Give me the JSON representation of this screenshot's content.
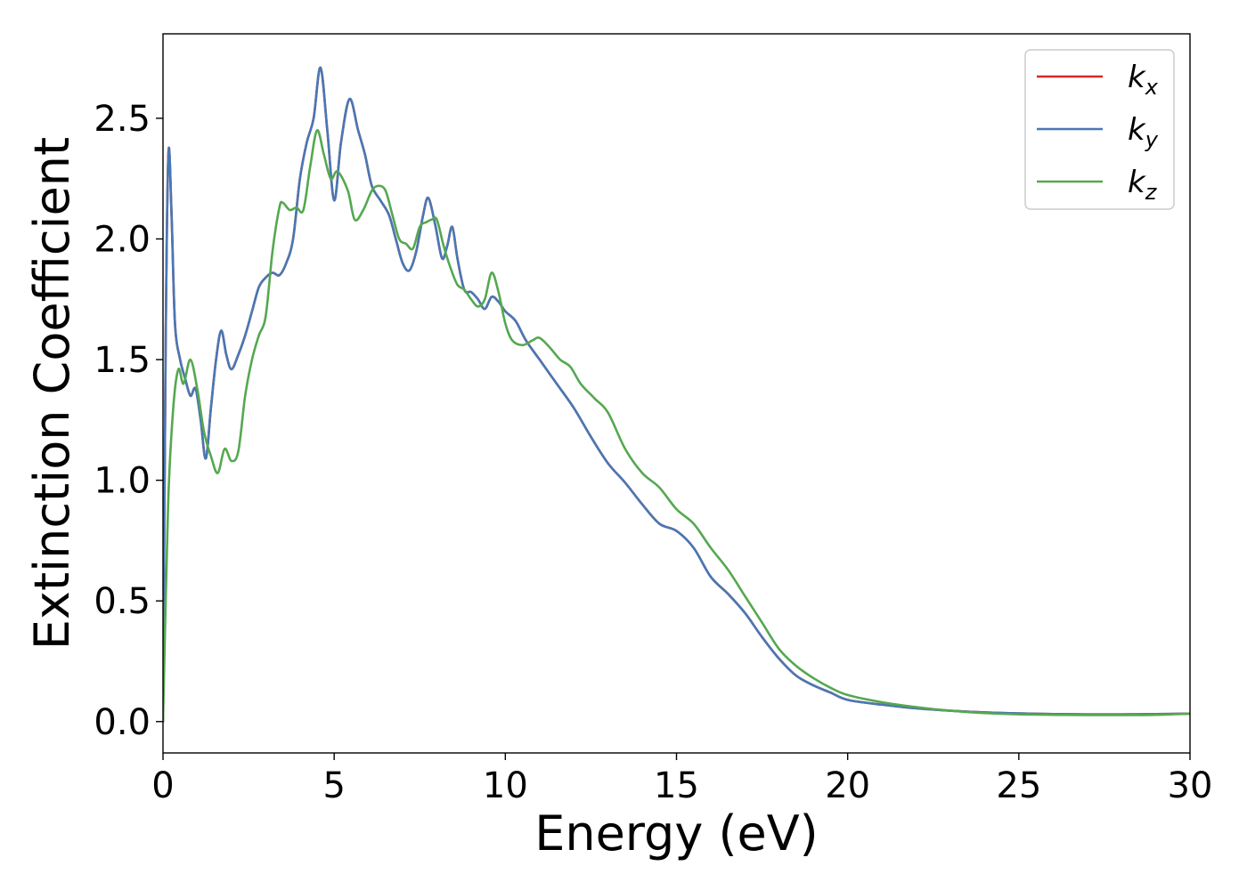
{
  "chart_data": {
    "type": "line",
    "title": "",
    "xlabel": "Energy (eV)",
    "ylabel": "Extinction Coefficient",
    "xlim": [
      0,
      30
    ],
    "ylim": [
      -0.13,
      2.85
    ],
    "xticks": [
      "0",
      "5",
      "10",
      "15",
      "20",
      "25",
      "30"
    ],
    "yticks": [
      "0.0",
      "0.5",
      "1.0",
      "1.5",
      "2.0",
      "2.5"
    ],
    "grid": false,
    "legend_position": "top-right",
    "series": [
      {
        "name": "k_x",
        "label_base": "k",
        "label_sub": "x",
        "color": "#d62728",
        "x": [
          0,
          0.08,
          0.16,
          0.25,
          0.35,
          0.5,
          0.65,
          0.8,
          0.95,
          1.1,
          1.25,
          1.4,
          1.55,
          1.7,
          1.85,
          2.0,
          2.2,
          2.4,
          2.6,
          2.8,
          3.0,
          3.2,
          3.4,
          3.6,
          3.8,
          4.0,
          4.2,
          4.4,
          4.6,
          4.8,
          5.0,
          5.2,
          5.45,
          5.7,
          5.9,
          6.1,
          6.35,
          6.6,
          6.8,
          7.0,
          7.2,
          7.4,
          7.6,
          7.75,
          7.95,
          8.15,
          8.3,
          8.45,
          8.6,
          8.8,
          9.0,
          9.2,
          9.4,
          9.6,
          9.8,
          10.0,
          10.3,
          10.6,
          11.0,
          11.5,
          12.0,
          12.5,
          13.0,
          13.5,
          14.0,
          14.5,
          15.0,
          15.5,
          16.0,
          16.5,
          17.0,
          17.5,
          18.0,
          18.5,
          19.0,
          19.5,
          20.0,
          21.0,
          22.0,
          23.0,
          24.0,
          25.0,
          26.0,
          27.0,
          28.0,
          29.0,
          30.0
        ],
        "y": [
          0.0,
          1.6,
          2.36,
          2.1,
          1.65,
          1.5,
          1.42,
          1.35,
          1.38,
          1.25,
          1.09,
          1.3,
          1.5,
          1.62,
          1.52,
          1.46,
          1.52,
          1.6,
          1.7,
          1.8,
          1.84,
          1.86,
          1.85,
          1.9,
          2.0,
          2.25,
          2.4,
          2.5,
          2.71,
          2.45,
          2.16,
          2.4,
          2.58,
          2.45,
          2.35,
          2.22,
          2.16,
          2.1,
          2.0,
          1.9,
          1.87,
          1.95,
          2.1,
          2.17,
          2.06,
          1.92,
          1.97,
          2.05,
          1.92,
          1.79,
          1.78,
          1.75,
          1.71,
          1.76,
          1.74,
          1.7,
          1.66,
          1.58,
          1.5,
          1.4,
          1.3,
          1.18,
          1.07,
          0.99,
          0.9,
          0.82,
          0.79,
          0.72,
          0.6,
          0.53,
          0.45,
          0.35,
          0.26,
          0.19,
          0.15,
          0.12,
          0.09,
          0.07,
          0.055,
          0.045,
          0.038,
          0.034,
          0.031,
          0.03,
          0.03,
          0.031,
          0.033
        ]
      },
      {
        "name": "k_y",
        "label_base": "k",
        "label_sub": "y",
        "color": "#4878b4",
        "x": [
          0,
          0.08,
          0.16,
          0.25,
          0.35,
          0.5,
          0.65,
          0.8,
          0.95,
          1.1,
          1.25,
          1.4,
          1.55,
          1.7,
          1.85,
          2.0,
          2.2,
          2.4,
          2.6,
          2.8,
          3.0,
          3.2,
          3.4,
          3.6,
          3.8,
          4.0,
          4.2,
          4.4,
          4.6,
          4.8,
          5.0,
          5.2,
          5.45,
          5.7,
          5.9,
          6.1,
          6.35,
          6.6,
          6.8,
          7.0,
          7.2,
          7.4,
          7.6,
          7.75,
          7.95,
          8.15,
          8.3,
          8.45,
          8.6,
          8.8,
          9.0,
          9.2,
          9.4,
          9.6,
          9.8,
          10.0,
          10.3,
          10.6,
          11.0,
          11.5,
          12.0,
          12.5,
          13.0,
          13.5,
          14.0,
          14.5,
          15.0,
          15.5,
          16.0,
          16.5,
          17.0,
          17.5,
          18.0,
          18.5,
          19.0,
          19.5,
          20.0,
          21.0,
          22.0,
          23.0,
          24.0,
          25.0,
          26.0,
          27.0,
          28.0,
          29.0,
          30.0
        ],
        "y": [
          0.0,
          1.6,
          2.36,
          2.1,
          1.65,
          1.5,
          1.42,
          1.35,
          1.38,
          1.25,
          1.09,
          1.3,
          1.5,
          1.62,
          1.52,
          1.46,
          1.52,
          1.6,
          1.7,
          1.8,
          1.84,
          1.86,
          1.85,
          1.9,
          2.0,
          2.25,
          2.4,
          2.5,
          2.71,
          2.45,
          2.16,
          2.4,
          2.58,
          2.45,
          2.35,
          2.22,
          2.16,
          2.1,
          2.0,
          1.9,
          1.87,
          1.95,
          2.1,
          2.17,
          2.06,
          1.92,
          1.97,
          2.05,
          1.92,
          1.79,
          1.78,
          1.75,
          1.71,
          1.76,
          1.74,
          1.7,
          1.66,
          1.58,
          1.5,
          1.4,
          1.3,
          1.18,
          1.07,
          0.99,
          0.9,
          0.82,
          0.79,
          0.72,
          0.6,
          0.53,
          0.45,
          0.35,
          0.26,
          0.19,
          0.15,
          0.12,
          0.09,
          0.07,
          0.055,
          0.045,
          0.038,
          0.034,
          0.031,
          0.03,
          0.03,
          0.031,
          0.033
        ]
      },
      {
        "name": "k_z",
        "label_base": "k",
        "label_sub": "z",
        "color": "#55a850",
        "x": [
          0,
          0.15,
          0.3,
          0.45,
          0.6,
          0.8,
          1.0,
          1.2,
          1.4,
          1.6,
          1.8,
          2.0,
          2.2,
          2.4,
          2.6,
          2.8,
          3.0,
          3.2,
          3.4,
          3.5,
          3.7,
          3.9,
          4.1,
          4.3,
          4.5,
          4.7,
          4.9,
          5.1,
          5.4,
          5.6,
          5.85,
          6.1,
          6.3,
          6.5,
          6.7,
          6.9,
          7.1,
          7.3,
          7.5,
          7.7,
          7.85,
          8.0,
          8.2,
          8.4,
          8.6,
          8.8,
          9.0,
          9.2,
          9.4,
          9.6,
          9.8,
          10.0,
          10.2,
          10.5,
          10.8,
          11.0,
          11.3,
          11.6,
          11.9,
          12.2,
          12.6,
          13.0,
          13.5,
          14.0,
          14.5,
          15.0,
          15.5,
          16.0,
          16.5,
          17.0,
          17.5,
          18.0,
          18.5,
          19.0,
          19.5,
          20.0,
          21.0,
          22.0,
          23.0,
          24.0,
          25.0,
          26.0,
          27.0,
          28.0,
          29.0,
          30.0
        ],
        "y": [
          0.0,
          0.9,
          1.3,
          1.46,
          1.4,
          1.5,
          1.38,
          1.2,
          1.1,
          1.03,
          1.13,
          1.08,
          1.12,
          1.35,
          1.5,
          1.6,
          1.68,
          1.95,
          2.13,
          2.15,
          2.12,
          2.13,
          2.12,
          2.3,
          2.45,
          2.35,
          2.25,
          2.28,
          2.2,
          2.08,
          2.12,
          2.2,
          2.22,
          2.2,
          2.1,
          2.0,
          1.98,
          1.96,
          2.05,
          2.07,
          2.08,
          2.08,
          1.97,
          1.88,
          1.81,
          1.79,
          1.75,
          1.72,
          1.75,
          1.86,
          1.78,
          1.65,
          1.58,
          1.56,
          1.58,
          1.59,
          1.55,
          1.5,
          1.47,
          1.4,
          1.34,
          1.28,
          1.13,
          1.03,
          0.97,
          0.88,
          0.82,
          0.72,
          0.63,
          0.52,
          0.41,
          0.3,
          0.23,
          0.18,
          0.14,
          0.11,
          0.08,
          0.06,
          0.045,
          0.035,
          0.03,
          0.028,
          0.027,
          0.027,
          0.028,
          0.033
        ]
      }
    ]
  }
}
